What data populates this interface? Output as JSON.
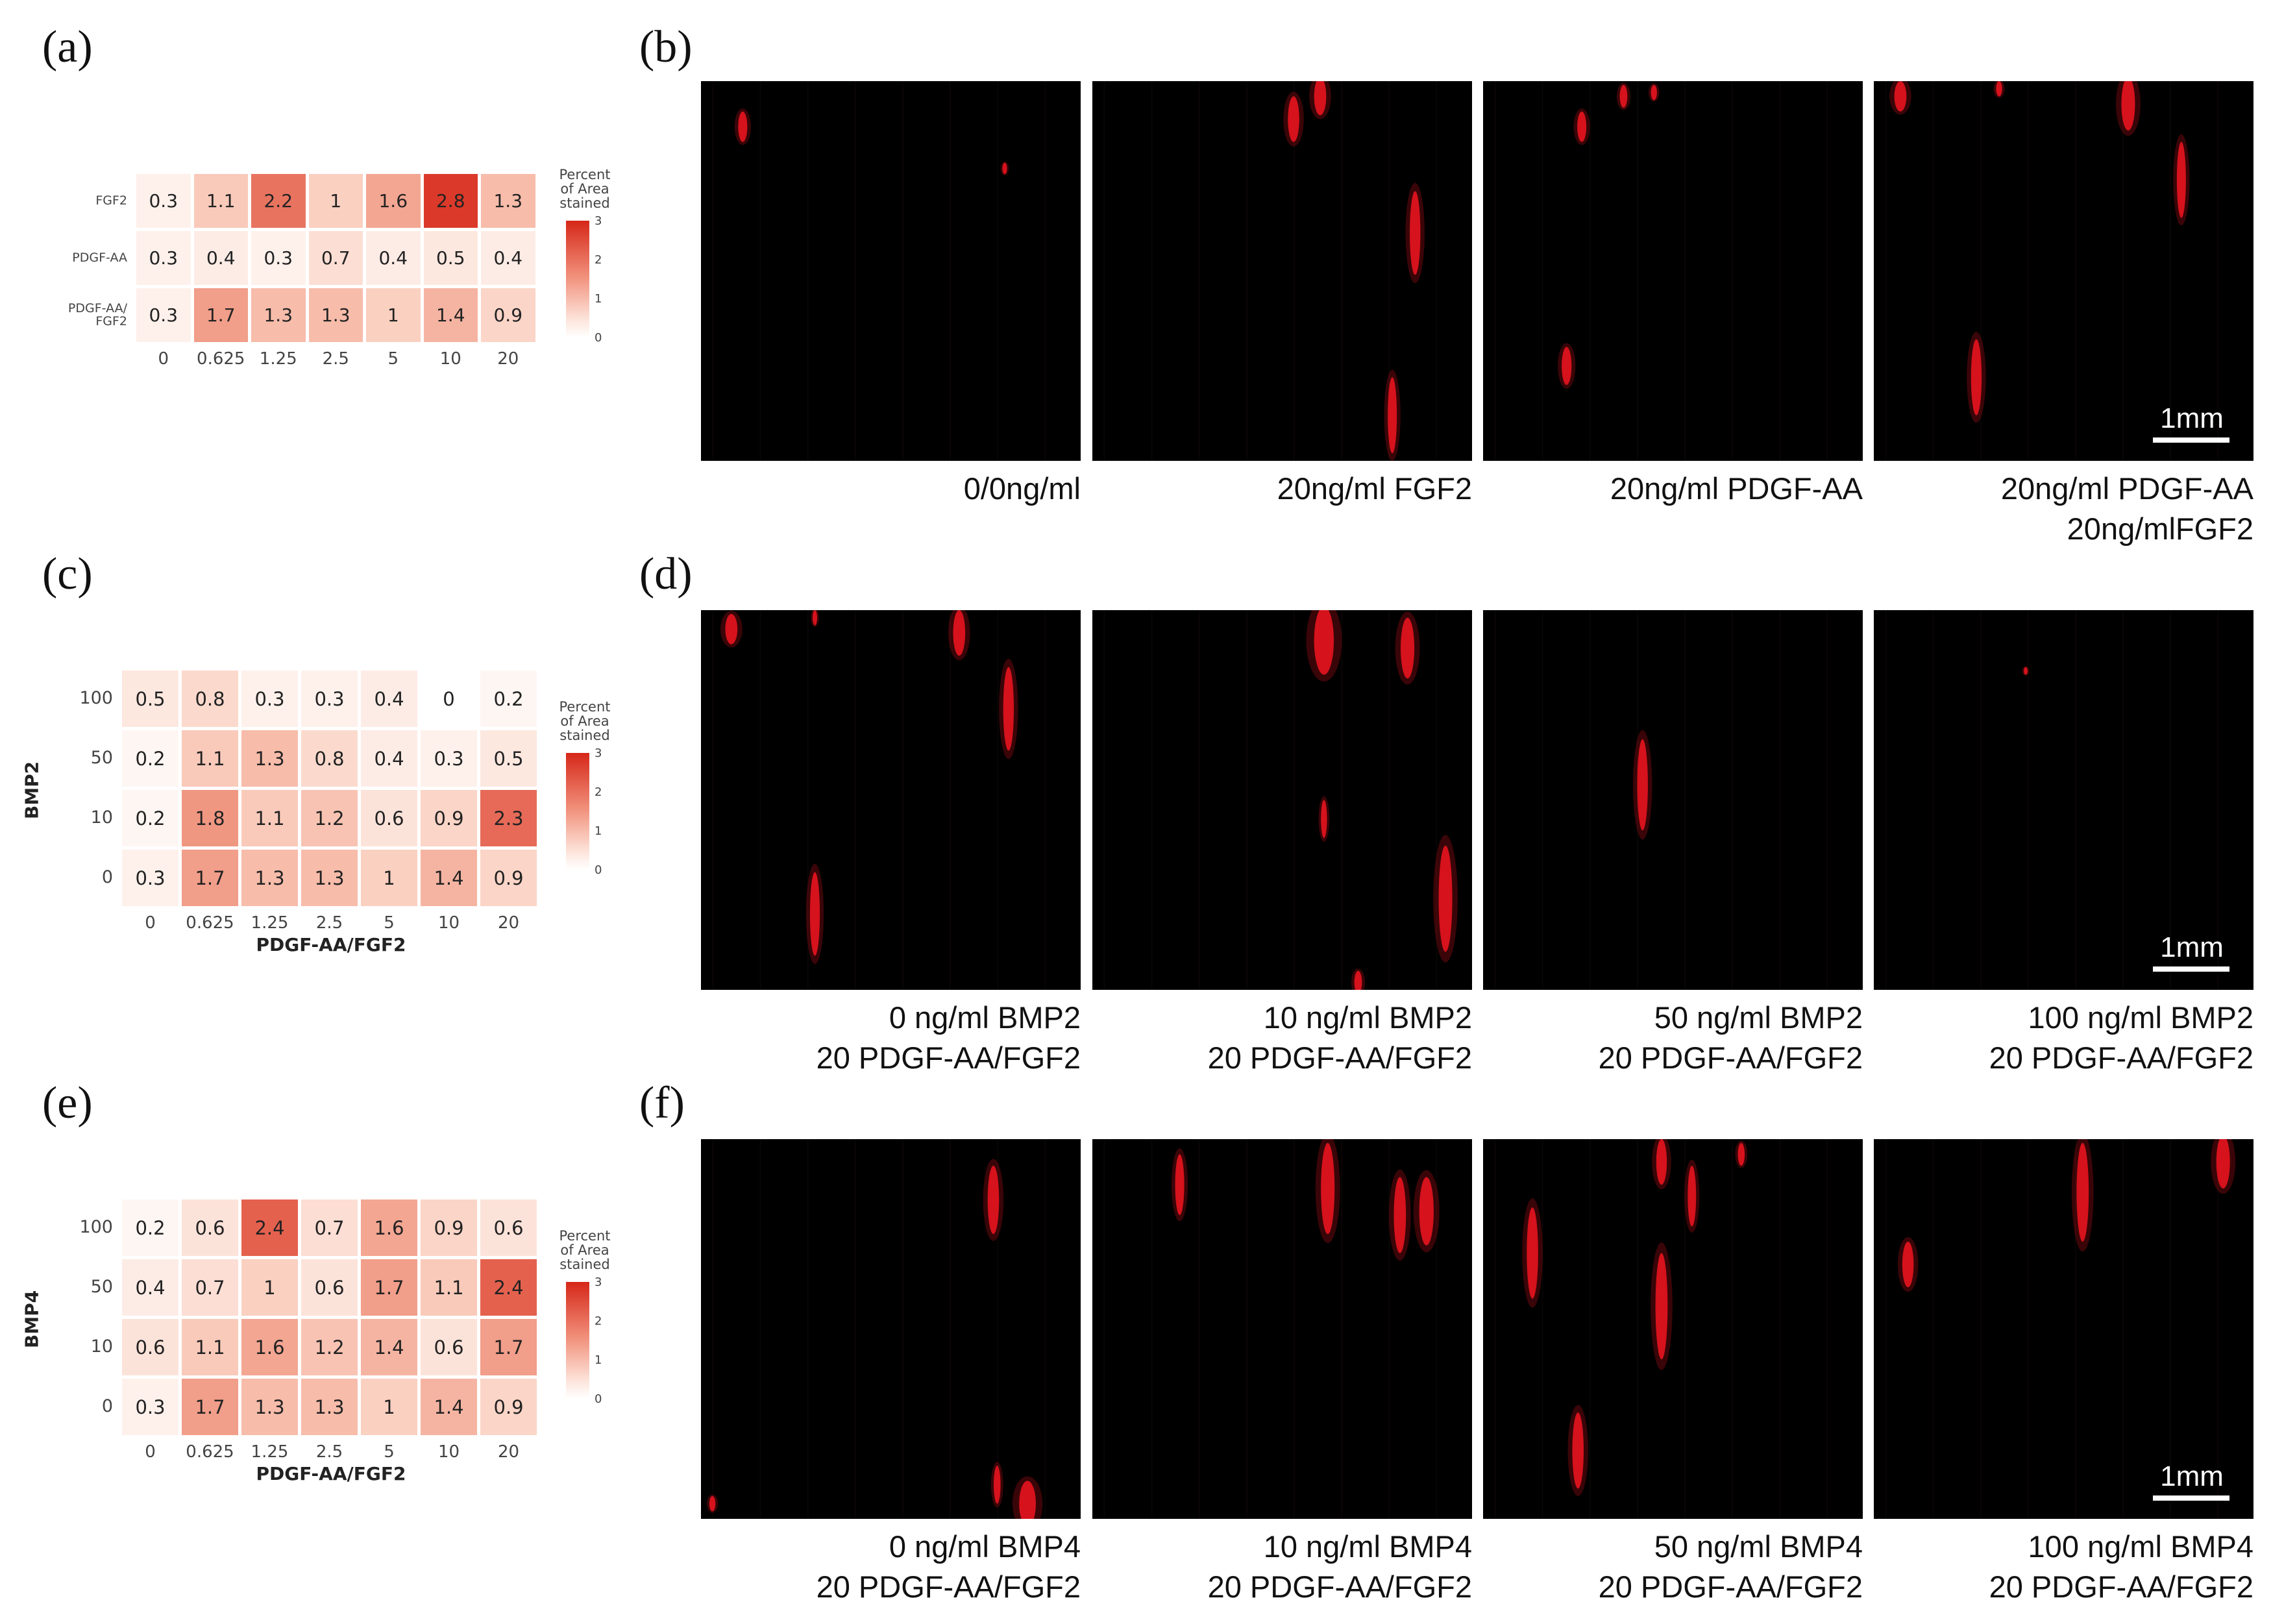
{
  "panels": {
    "a": {
      "label": "(a)"
    },
    "b": {
      "label": "(b)"
    },
    "c": {
      "label": "(c)"
    },
    "d": {
      "label": "(d)"
    },
    "e": {
      "label": "(e)"
    },
    "f": {
      "label": "(f)"
    }
  },
  "chart_data": [
    {
      "id": "a",
      "type": "heatmap",
      "title": "",
      "xlabel": "",
      "ylabel": "",
      "x": [
        "0",
        "0.625",
        "1.25",
        "2.5",
        "5",
        "10",
        "20"
      ],
      "y": [
        "FGF2",
        "PDGF-AA",
        "PDGF-AA/\nFGF2"
      ],
      "values": [
        [
          0.3,
          1.1,
          2.2,
          1,
          1.6,
          2.8,
          1.3
        ],
        [
          0.3,
          0.4,
          0.3,
          0.7,
          0.4,
          0.5,
          0.4
        ],
        [
          0.3,
          1.7,
          1.3,
          1.3,
          1,
          1.4,
          0.9
        ]
      ],
      "legend": {
        "title": "Percent\nof Area\nstained",
        "ticks": [
          "3",
          "2",
          "1",
          "0"
        ],
        "range": [
          0,
          3
        ]
      }
    },
    {
      "id": "c",
      "type": "heatmap",
      "title": "",
      "xlabel": "PDGF-AA/FGF2",
      "ylabel": "BMP2",
      "x": [
        "0",
        "0.625",
        "1.25",
        "2.5",
        "5",
        "10",
        "20"
      ],
      "y": [
        "100",
        "50",
        "10",
        "0"
      ],
      "values": [
        [
          0.5,
          0.8,
          0.3,
          0.3,
          0.4,
          0,
          0.2
        ],
        [
          0.2,
          1.1,
          1.3,
          0.8,
          0.4,
          0.3,
          0.5
        ],
        [
          0.2,
          1.8,
          1.1,
          1.2,
          0.6,
          0.9,
          2.3
        ],
        [
          0.3,
          1.7,
          1.3,
          1.3,
          1,
          1.4,
          0.9
        ]
      ],
      "legend": {
        "title": "Percent\nof Area\nstained",
        "ticks": [
          "3",
          "2",
          "1",
          "0"
        ],
        "range": [
          0,
          3
        ]
      }
    },
    {
      "id": "e",
      "type": "heatmap",
      "title": "",
      "xlabel": "PDGF-AA/FGF2",
      "ylabel": "BMP4",
      "x": [
        "0",
        "0.625",
        "1.25",
        "2.5",
        "5",
        "10",
        "20"
      ],
      "y": [
        "100",
        "50",
        "10",
        "0"
      ],
      "values": [
        [
          0.2,
          0.6,
          2.4,
          0.7,
          1.6,
          0.9,
          0.6
        ],
        [
          0.4,
          0.7,
          1,
          0.6,
          1.7,
          1.1,
          2.4
        ],
        [
          0.6,
          1.1,
          1.6,
          1.2,
          1.4,
          0.6,
          1.7
        ],
        [
          0.3,
          1.7,
          1.3,
          1.3,
          1,
          1.4,
          0.9
        ]
      ],
      "legend": {
        "title": "Percent\nof Area\nstained",
        "ticks": [
          "3",
          "2",
          "1",
          "0"
        ],
        "range": [
          0,
          3
        ]
      }
    }
  ],
  "image_rows": {
    "b": {
      "captions": [
        [
          "0/0ng/ml"
        ],
        [
          "20ng/ml FGF2"
        ],
        [
          "20ng/ml PDGF-AA"
        ],
        [
          "20ng/ml PDGF-AA",
          "20ng/mlFGF2"
        ]
      ],
      "scalebar": "1mm"
    },
    "d": {
      "captions": [
        [
          "0 ng/ml BMP2",
          "20 PDGF-AA/FGF2"
        ],
        [
          "10 ng/ml BMP2",
          "20 PDGF-AA/FGF2"
        ],
        [
          "50 ng/ml BMP2",
          "20 PDGF-AA/FGF2"
        ],
        [
          "100 ng/ml BMP2",
          "20 PDGF-AA/FGF2"
        ]
      ],
      "scalebar": "1mm"
    },
    "f": {
      "captions": [
        [
          "0 ng/ml BMP4",
          "20 PDGF-AA/FGF2"
        ],
        [
          "10 ng/ml BMP4",
          "20 PDGF-AA/FGF2"
        ],
        [
          "50 ng/ml BMP4",
          "20 PDGF-AA/FGF2"
        ],
        [
          "100 ng/ml BMP4",
          "20 PDGF-AA/FGF2"
        ]
      ],
      "scalebar": "1mm"
    }
  },
  "colors": {
    "stain": "#e8141e",
    "heat_high": "#d62718",
    "heat_low": "#ffffff",
    "image_bg": "#000000"
  }
}
